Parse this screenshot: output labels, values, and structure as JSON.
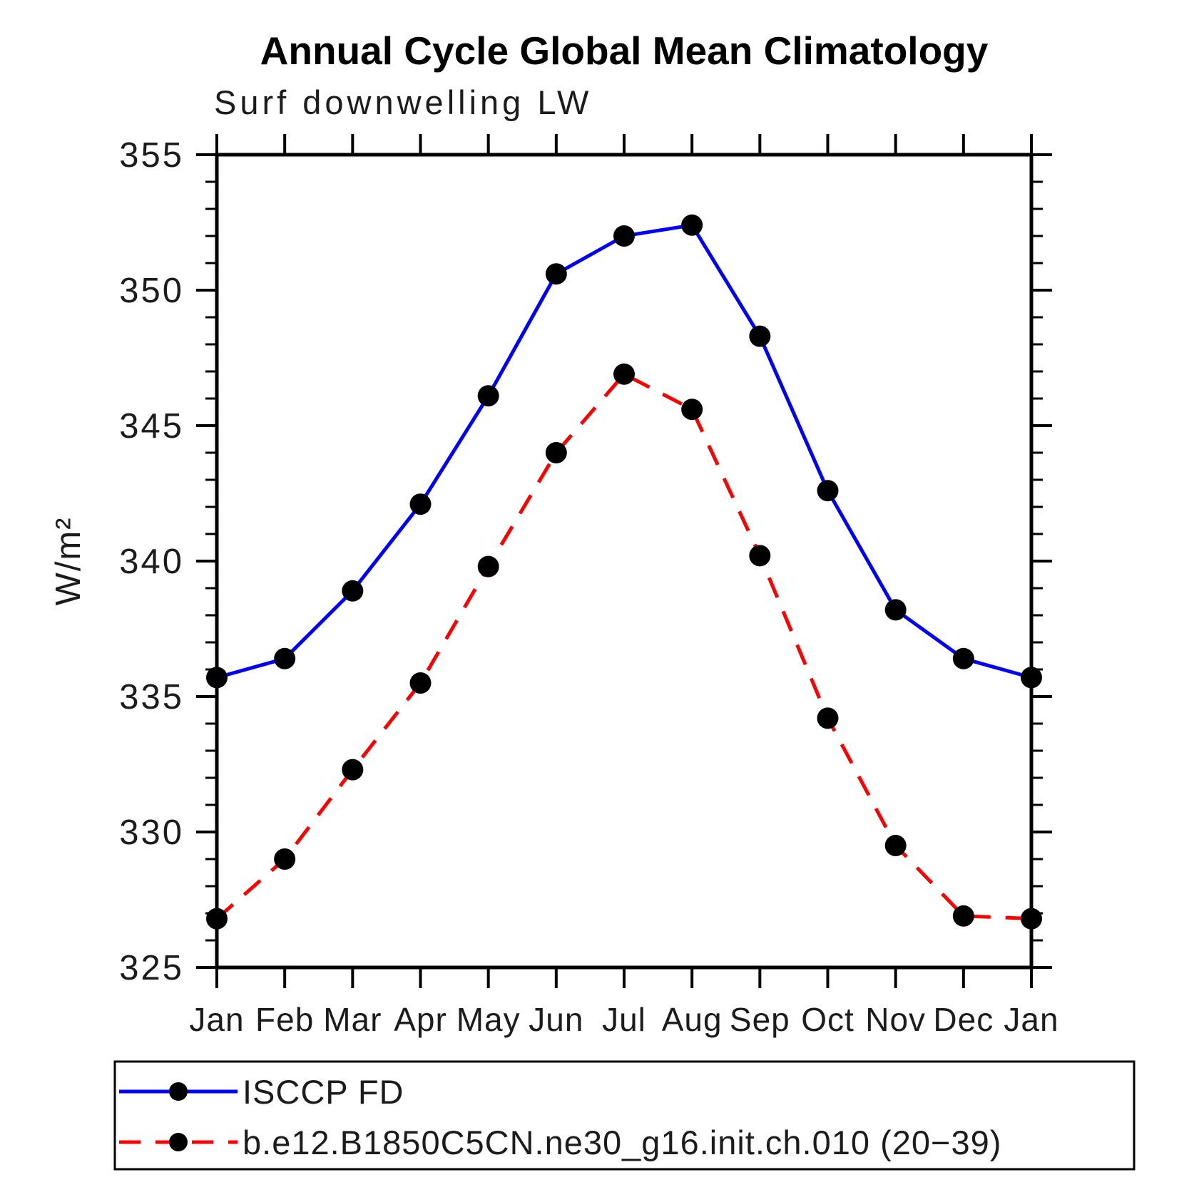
{
  "chart_data": {
    "type": "line",
    "title": "Annual Cycle Global Mean Climatology",
    "subtitle": "Surf downwelling LW",
    "ylabel": "W/m²",
    "categories": [
      "Jan",
      "Feb",
      "Mar",
      "Apr",
      "May",
      "Jun",
      "Jul",
      "Aug",
      "Sep",
      "Oct",
      "Nov",
      "Dec",
      "Jan"
    ],
    "y_tick_labels": [
      "355",
      "350",
      "345",
      "340",
      "335",
      "330",
      "325"
    ],
    "ylim": [
      325,
      355
    ],
    "y_major_step": 5,
    "y_minor_step": 1,
    "grid": false,
    "legend_position": "bottom-left",
    "series": [
      {
        "name": "ISCCP FD",
        "color": "#0000ff",
        "line_style": "solid",
        "marker": "filled-circle",
        "marker_color": "#000000",
        "values": [
          335.7,
          336.4,
          338.9,
          342.1,
          346.1,
          350.6,
          352.0,
          352.4,
          348.3,
          342.6,
          338.2,
          336.4,
          335.7
        ]
      },
      {
        "name": "b.e12.B1850C5CN.ne30_g16.init.ch.010 (20−39)",
        "color": "#ff0000",
        "line_style": "dashed",
        "marker": "filled-circle",
        "marker_color": "#000000",
        "values": [
          326.8,
          329.0,
          332.3,
          335.5,
          339.8,
          344.0,
          346.9,
          345.6,
          340.2,
          334.2,
          329.5,
          326.9,
          326.8
        ]
      }
    ]
  }
}
